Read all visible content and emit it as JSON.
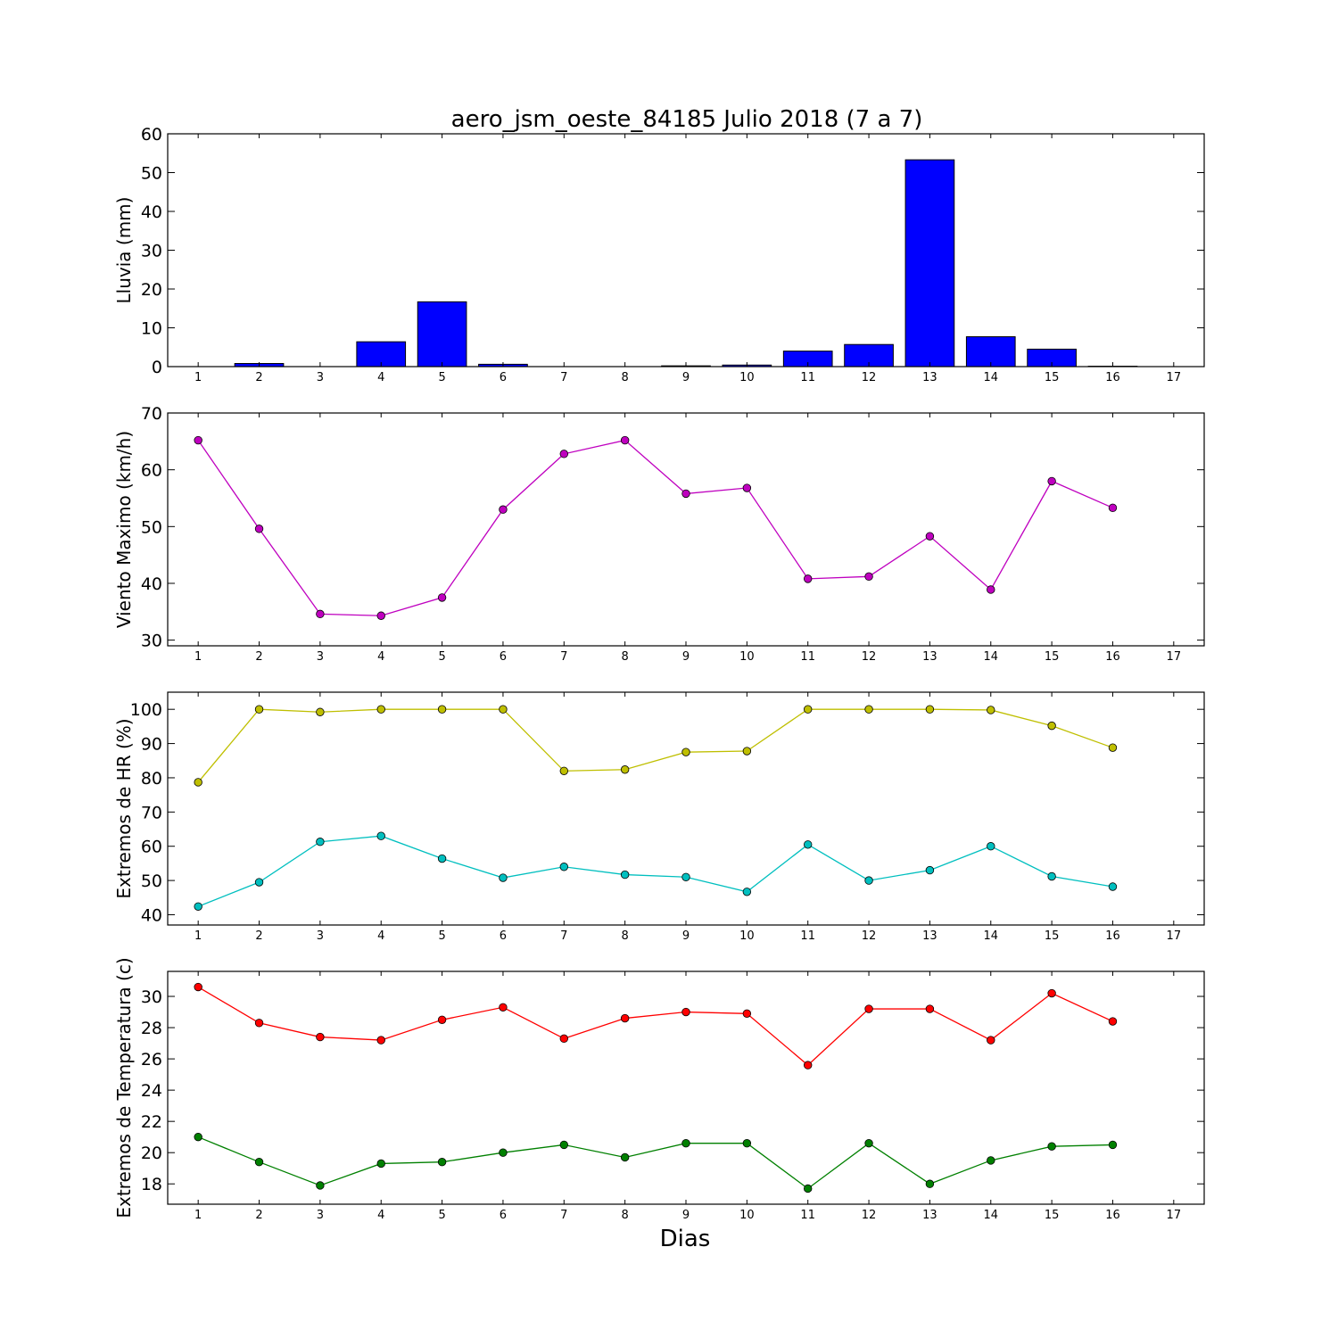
{
  "figure": {
    "title": "aero_jsm_oeste_84185 Julio 2018  (7 a 7)",
    "xlabel": "Dias"
  },
  "chart_data": [
    {
      "type": "bar",
      "ylabel": "Lluvia (mm)",
      "ylim": [
        0,
        60
      ],
      "yticks": [
        0,
        10,
        20,
        30,
        40,
        50,
        60
      ],
      "xlim": [
        0.5,
        17.5
      ],
      "xticks": [
        1,
        2,
        3,
        4,
        5,
        6,
        7,
        8,
        9,
        10,
        11,
        12,
        13,
        14,
        15,
        16,
        17
      ],
      "grid": false,
      "x": [
        1,
        2,
        3,
        4,
        5,
        6,
        7,
        8,
        9,
        10,
        11,
        12,
        13,
        14,
        15,
        16
      ],
      "series": [
        {
          "values": [
            0.0,
            0.8,
            0.0,
            6.4,
            16.7,
            0.6,
            0.0,
            0.0,
            0.2,
            0.4,
            4.0,
            5.7,
            53.3,
            7.7,
            4.5,
            0.1
          ],
          "color": "#0000ff"
        }
      ]
    },
    {
      "type": "line",
      "ylabel": "Viento Maximo (km/h)",
      "ylim": [
        29,
        70
      ],
      "yticks": [
        30,
        40,
        50,
        60,
        70
      ],
      "xlim": [
        0.5,
        17.5
      ],
      "xticks": [
        1,
        2,
        3,
        4,
        5,
        6,
        7,
        8,
        9,
        10,
        11,
        12,
        13,
        14,
        15,
        16,
        17
      ],
      "grid": false,
      "x": [
        1,
        2,
        3,
        4,
        5,
        6,
        7,
        8,
        9,
        10,
        11,
        12,
        13,
        14,
        15,
        16
      ],
      "series": [
        {
          "values": [
            65.2,
            49.6,
            34.6,
            34.3,
            37.5,
            53.0,
            62.8,
            65.2,
            55.8,
            56.8,
            40.8,
            41.2,
            48.3,
            38.9,
            58.0,
            53.3
          ],
          "color": "#bf00bf"
        }
      ]
    },
    {
      "type": "line",
      "ylabel": "Extremos de HR (%)",
      "ylim": [
        37,
        105
      ],
      "yticks": [
        40,
        50,
        60,
        70,
        80,
        90,
        100
      ],
      "xlim": [
        0.5,
        17.5
      ],
      "xticks": [
        1,
        2,
        3,
        4,
        5,
        6,
        7,
        8,
        9,
        10,
        11,
        12,
        13,
        14,
        15,
        16,
        17
      ],
      "grid": false,
      "x": [
        1,
        2,
        3,
        4,
        5,
        6,
        7,
        8,
        9,
        10,
        11,
        12,
        13,
        14,
        15,
        16
      ],
      "series": [
        {
          "values": [
            78.7,
            100.0,
            99.2,
            100.0,
            100.0,
            100.0,
            82.0,
            82.4,
            87.5,
            87.8,
            100.0,
            100.0,
            100.0,
            99.8,
            95.2,
            88.8
          ],
          "color": "#bfbf00"
        },
        {
          "values": [
            42.4,
            49.5,
            61.3,
            63.0,
            56.4,
            50.8,
            54.0,
            51.7,
            51.0,
            46.7,
            60.5,
            50.0,
            53.0,
            60.0,
            51.2,
            48.2
          ],
          "color": "#00bfbf"
        }
      ]
    },
    {
      "type": "line",
      "ylabel": "Extremos de Temperatura (c)",
      "ylim": [
        16.7,
        31.6
      ],
      "yticks": [
        18,
        20,
        22,
        24,
        26,
        28,
        30
      ],
      "xlim": [
        0.5,
        17.5
      ],
      "xticks": [
        1,
        2,
        3,
        4,
        5,
        6,
        7,
        8,
        9,
        10,
        11,
        12,
        13,
        14,
        15,
        16,
        17
      ],
      "grid": false,
      "x": [
        1,
        2,
        3,
        4,
        5,
        6,
        7,
        8,
        9,
        10,
        11,
        12,
        13,
        14,
        15,
        16
      ],
      "series": [
        {
          "values": [
            30.6,
            28.3,
            27.4,
            27.2,
            28.5,
            29.3,
            27.3,
            28.6,
            29.0,
            28.9,
            25.6,
            29.2,
            29.2,
            27.2,
            30.2,
            28.4
          ],
          "color": "#ff0000"
        },
        {
          "values": [
            21.0,
            19.4,
            17.9,
            19.3,
            19.4,
            20.0,
            20.5,
            19.7,
            20.6,
            20.6,
            17.7,
            20.6,
            18.0,
            19.5,
            20.4,
            20.5
          ],
          "color": "#008000"
        }
      ]
    }
  ]
}
